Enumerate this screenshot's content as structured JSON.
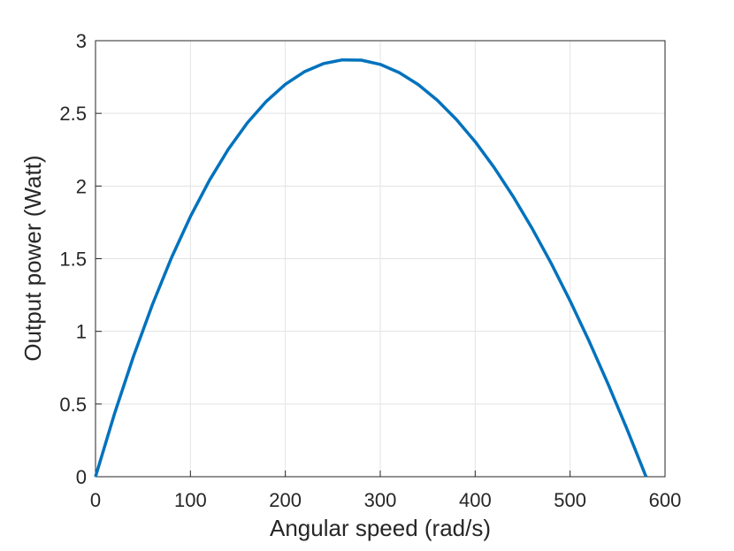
{
  "chart_data": {
    "type": "line",
    "x_label": "Angular speed (rad/s)",
    "y_label": "Output power (Watt)",
    "x": [
      0,
      20,
      40,
      60,
      80,
      100,
      120,
      140,
      160,
      180,
      200,
      220,
      240,
      260,
      280,
      300,
      320,
      340,
      360,
      380,
      400,
      420,
      440,
      460,
      480,
      500,
      520,
      540,
      560,
      580
    ],
    "series": [
      {
        "color": "#0072bd",
        "values": [
          0,
          0.433,
          0.828,
          1.185,
          1.506,
          1.79,
          2.039,
          2.254,
          2.435,
          2.583,
          2.7,
          2.786,
          2.842,
          2.868,
          2.866,
          2.837,
          2.78,
          2.698,
          2.591,
          2.459,
          2.305,
          2.127,
          1.928,
          1.708,
          1.469,
          1.21,
          0.933,
          0.638,
          0.327,
          0
        ]
      }
    ],
    "xlim": [
      0,
      600
    ],
    "xticks": [
      0,
      100,
      200,
      300,
      400,
      500,
      600
    ],
    "ylim": [
      0,
      3
    ],
    "yticks": [
      0,
      0.5,
      1,
      1.5,
      2,
      2.5,
      3
    ],
    "grid": true
  }
}
